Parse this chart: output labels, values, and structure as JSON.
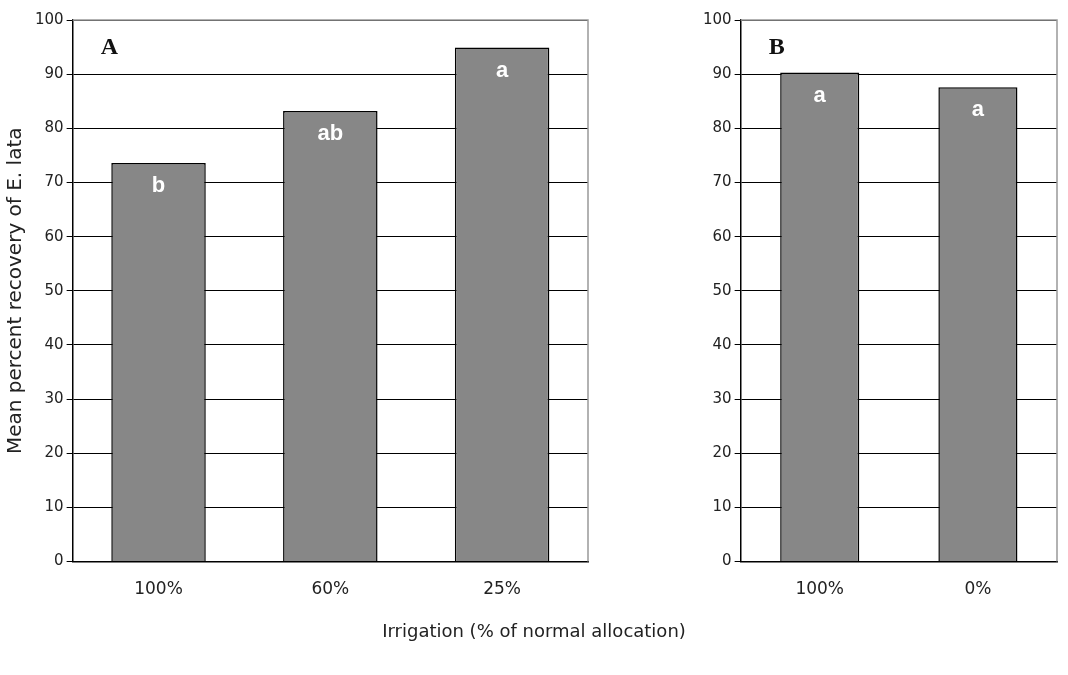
{
  "chart_data": [
    {
      "type": "bar",
      "categories": [
        "100%",
        "60%",
        "25%"
      ],
      "values": [
        73.6,
        83.2,
        94.9
      ],
      "color": "#878787",
      "ylim": [
        0,
        100
      ],
      "yticks": [
        0,
        10,
        20,
        30,
        40,
        50,
        60,
        70,
        80,
        90,
        100
      ],
      "grid": "y",
      "ylabel": "Mean percent recovery of E. lata",
      "xlabel": "Irrigation (% of normal allocation)",
      "annotations": [
        "A",
        {
          "text": "b",
          "x": "100%",
          "y": 73.6
        },
        {
          "text": "ab",
          "x": "60%",
          "y": 83.2
        },
        {
          "text": "a",
          "x": "25%",
          "y": 94.9
        }
      ]
    },
    {
      "type": "bar",
      "categories": [
        "100%",
        "0%"
      ],
      "values": [
        90.3,
        87.6
      ],
      "color": "#878787",
      "ylim": [
        0,
        100
      ],
      "yticks": [
        0,
        10,
        20,
        30,
        40,
        50,
        60,
        70,
        80,
        90,
        100
      ],
      "grid": "y",
      "annotations": [
        "B",
        {
          "text": "a",
          "x": "100%",
          "y": 90.3
        },
        {
          "text": "a",
          "x": "0%",
          "y": 87.6
        }
      ]
    }
  ]
}
